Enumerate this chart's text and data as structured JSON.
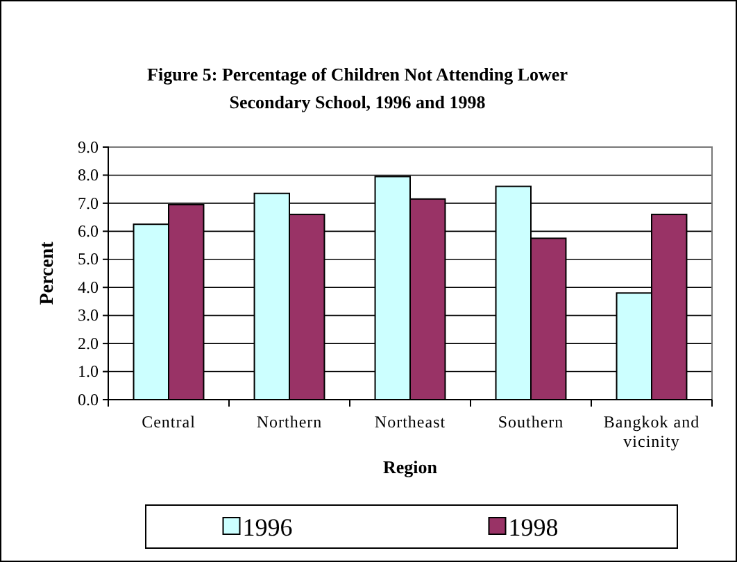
{
  "chart_data": {
    "type": "bar",
    "title": "Figure 5:  Percentage of Children Not Attending Lower Secondary School, 1996 and 1998",
    "xlabel": "Region",
    "ylabel": "Percent",
    "categories": [
      "Central",
      "Northern",
      "Northeast",
      "Southern",
      "Bangkok and vicinity"
    ],
    "series": [
      {
        "name": "1996",
        "color": "#ccffff",
        "values": [
          6.25,
          7.35,
          7.95,
          7.6,
          3.8
        ]
      },
      {
        "name": "1998",
        "color": "#993366",
        "values": [
          6.95,
          6.6,
          7.15,
          5.75,
          6.6
        ]
      }
    ],
    "ylim": [
      0,
      9
    ],
    "yticks": [
      {
        "value": 0,
        "label": "0.0"
      },
      {
        "value": 1,
        "label": "1.0"
      },
      {
        "value": 2,
        "label": "2.0"
      },
      {
        "value": 3,
        "label": "3.0"
      },
      {
        "value": 4,
        "label": "4.0"
      },
      {
        "value": 5,
        "label": "5.0"
      },
      {
        "value": 6,
        "label": "6.0"
      },
      {
        "value": 7,
        "label": "7.0"
      },
      {
        "value": 8,
        "label": "8.0"
      },
      {
        "value": 9,
        "label": "9.0"
      }
    ],
    "grid": "y",
    "legend": "bottom"
  }
}
